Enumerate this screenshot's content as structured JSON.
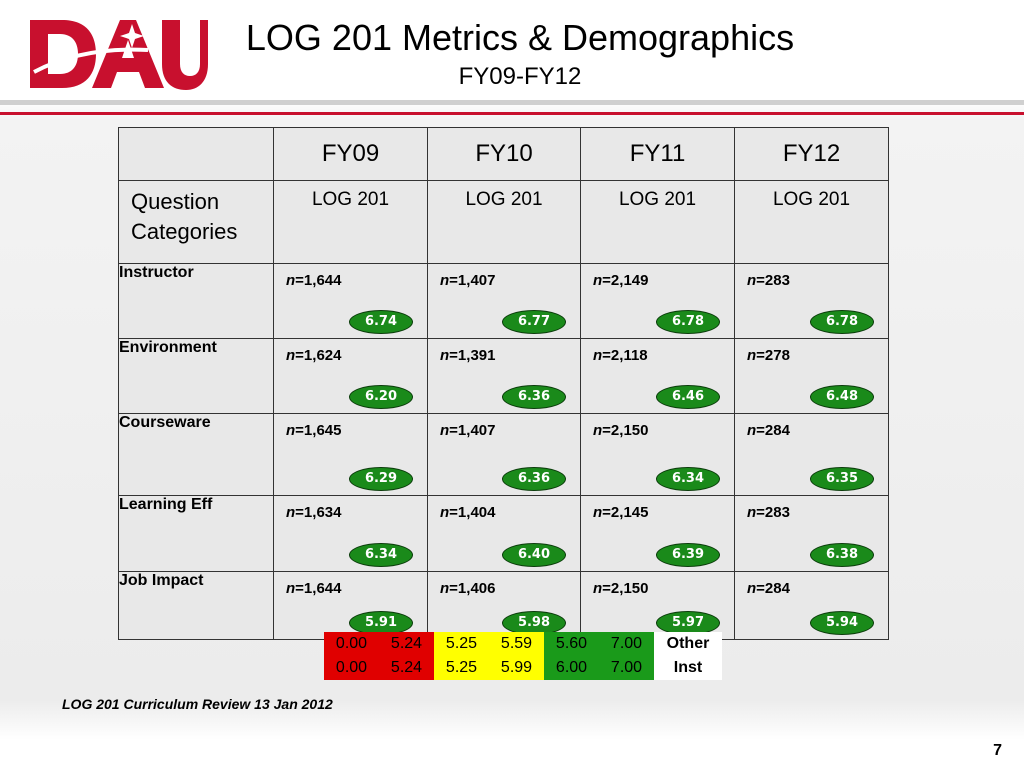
{
  "header": {
    "title": "LOG 201 Metrics & Demographics",
    "subtitle": "FY09-FY12"
  },
  "table": {
    "years": [
      "FY09",
      "FY10",
      "FY11",
      "FY12"
    ],
    "sub_header_label": "Question Categories",
    "course_labels": [
      "LOG 201",
      "LOG 201",
      "LOG 201",
      "LOG 201"
    ],
    "rows": [
      {
        "category": "Instructor",
        "cells": [
          {
            "n": "=1,644",
            "score": "6.74"
          },
          {
            "n": "=1,407",
            "score": "6.77"
          },
          {
            "n": "=2,149",
            "score": "6.78"
          },
          {
            "n": "=283",
            "score": "6.78"
          }
        ]
      },
      {
        "category": "Environment",
        "cells": [
          {
            "n": "=1,624",
            "score": "6.20"
          },
          {
            "n": "=1,391",
            "score": "6.36"
          },
          {
            "n": "=2,118",
            "score": "6.46"
          },
          {
            "n": "=278",
            "score": "6.48"
          }
        ]
      },
      {
        "category": "Courseware",
        "cells": [
          {
            "n": "=1,645",
            "score": "6.29"
          },
          {
            "n": "=1,407",
            "score": "6.36"
          },
          {
            "n": "=2,150",
            "score": "6.34"
          },
          {
            "n": "=284",
            "score": "6.35"
          }
        ]
      },
      {
        "category": "Learning Eff",
        "cells": [
          {
            "n": "=1,634",
            "score": "6.34"
          },
          {
            "n": "=1,404",
            "score": "6.40"
          },
          {
            "n": "=2,145",
            "score": "6.39"
          },
          {
            "n": "=283",
            "score": "6.38"
          }
        ]
      },
      {
        "category": "Job Impact",
        "cells": [
          {
            "n": "=1,644",
            "score": "5.91"
          },
          {
            "n": "=1,406",
            "score": "5.98"
          },
          {
            "n": "=2,150",
            "score": "5.97"
          },
          {
            "n": "=284",
            "score": "5.94"
          }
        ]
      }
    ],
    "n_prefix": "n"
  },
  "legend": {
    "row1": [
      "0.00",
      "5.24",
      "5.25",
      "5.59",
      "5.60",
      "7.00",
      "Other"
    ],
    "row2": [
      "0.00",
      "5.24",
      "5.25",
      "5.99",
      "6.00",
      "7.00",
      "Inst"
    ]
  },
  "footer": {
    "note": "LOG 201 Curriculum Review 13 Jan 2012",
    "page_number": "7"
  },
  "colors": {
    "brand_red": "#c8102e",
    "score_green": "#1a8a1a",
    "legend_red": "#e00000",
    "legend_yellow": "#ffff00",
    "legend_green": "#1a9a1a"
  },
  "logo_text": "DAU"
}
